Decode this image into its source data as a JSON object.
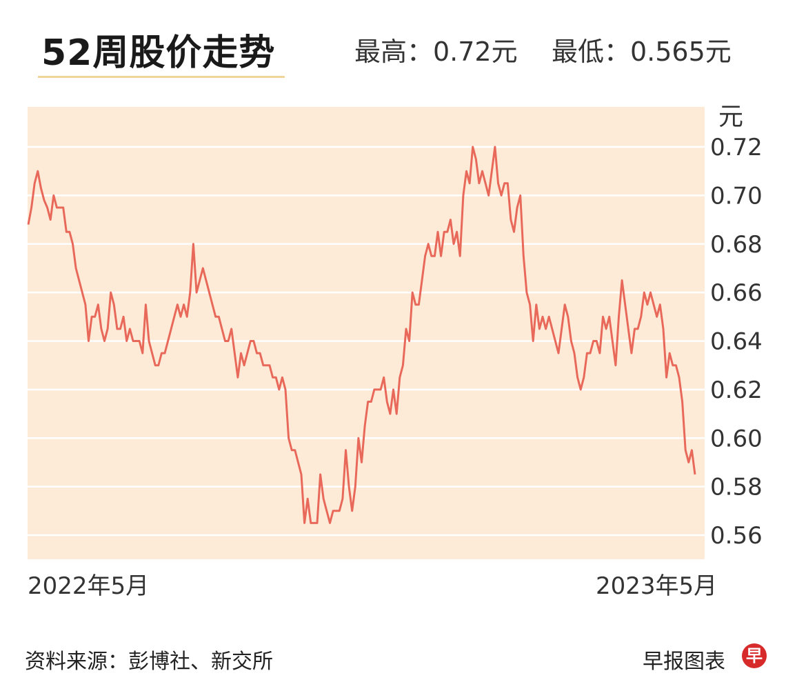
{
  "header": {
    "title": "52周股价走势",
    "high_text": "最高：0.72元",
    "low_text": "最低：0.565元"
  },
  "footer": {
    "source": "资料来源：彭博社、新交所",
    "brand": "早报图表",
    "logo_glyph": "早"
  },
  "colors": {
    "plot_background": "#fdebd8",
    "line": "#e8685a",
    "grid": "#ffffff",
    "logo": "#d72a2a"
  },
  "chart_data": {
    "type": "line",
    "title": "52周股价走势",
    "ylabel": "元",
    "ylim": [
      0.55,
      0.73
    ],
    "yticks": [
      0.56,
      0.58,
      0.6,
      0.62,
      0.64,
      0.66,
      0.68,
      0.7,
      0.72
    ],
    "ytick_labels": [
      "0.56",
      "0.58",
      "0.60",
      "0.62",
      "0.64",
      "0.66",
      "0.68",
      "0.70",
      "0.72"
    ],
    "x_start_label": "2022年5月",
    "x_end_label": "2023年5月",
    "grid": true,
    "series": [
      {
        "values": [
          0.688,
          0.695,
          0.705,
          0.71,
          0.703,
          0.698,
          0.695,
          0.69,
          0.7,
          0.695,
          0.695,
          0.695,
          0.685,
          0.685,
          0.68,
          0.67,
          0.665,
          0.66,
          0.655,
          0.64,
          0.65,
          0.65,
          0.655,
          0.645,
          0.64,
          0.645,
          0.66,
          0.655,
          0.645,
          0.645,
          0.65,
          0.64,
          0.645,
          0.64,
          0.64,
          0.64,
          0.635,
          0.655,
          0.64,
          0.635,
          0.63,
          0.63,
          0.635,
          0.635,
          0.64,
          0.645,
          0.65,
          0.655,
          0.65,
          0.655,
          0.65,
          0.66,
          0.68,
          0.66,
          0.665,
          0.67,
          0.665,
          0.66,
          0.655,
          0.65,
          0.65,
          0.645,
          0.64,
          0.64,
          0.645,
          0.635,
          0.625,
          0.635,
          0.63,
          0.635,
          0.64,
          0.64,
          0.635,
          0.635,
          0.63,
          0.63,
          0.63,
          0.625,
          0.625,
          0.62,
          0.625,
          0.62,
          0.6,
          0.595,
          0.595,
          0.59,
          0.585,
          0.565,
          0.575,
          0.565,
          0.565,
          0.565,
          0.585,
          0.575,
          0.57,
          0.565,
          0.57,
          0.57,
          0.57,
          0.575,
          0.595,
          0.58,
          0.57,
          0.58,
          0.6,
          0.59,
          0.605,
          0.615,
          0.615,
          0.62,
          0.62,
          0.62,
          0.625,
          0.615,
          0.61,
          0.62,
          0.61,
          0.625,
          0.63,
          0.645,
          0.64,
          0.66,
          0.655,
          0.655,
          0.665,
          0.675,
          0.68,
          0.675,
          0.675,
          0.685,
          0.675,
          0.685,
          0.685,
          0.69,
          0.68,
          0.685,
          0.675,
          0.7,
          0.71,
          0.705,
          0.72,
          0.715,
          0.705,
          0.71,
          0.705,
          0.7,
          0.71,
          0.72,
          0.705,
          0.7,
          0.705,
          0.705,
          0.69,
          0.685,
          0.695,
          0.7,
          0.675,
          0.66,
          0.655,
          0.64,
          0.655,
          0.645,
          0.65,
          0.645,
          0.65,
          0.645,
          0.64,
          0.635,
          0.645,
          0.655,
          0.65,
          0.64,
          0.635,
          0.625,
          0.62,
          0.625,
          0.635,
          0.635,
          0.64,
          0.64,
          0.635,
          0.65,
          0.645,
          0.65,
          0.64,
          0.63,
          0.65,
          0.665,
          0.655,
          0.645,
          0.635,
          0.645,
          0.645,
          0.65,
          0.66,
          0.655,
          0.66,
          0.655,
          0.65,
          0.655,
          0.645,
          0.625,
          0.635,
          0.63,
          0.63,
          0.625,
          0.615,
          0.595,
          0.59,
          0.595,
          0.585
        ]
      }
    ]
  }
}
